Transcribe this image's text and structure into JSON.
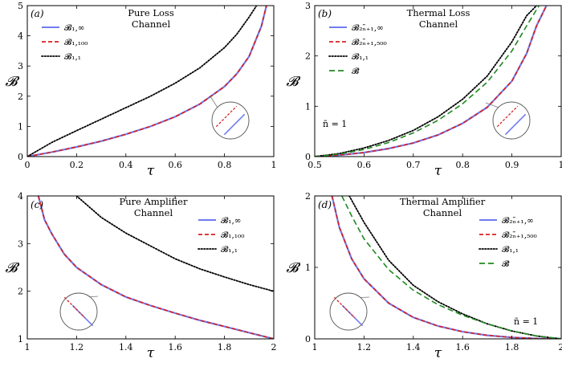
{
  "chart_data": [
    {
      "type": "line",
      "panel": "(a)",
      "title_lines": [
        "Pure Loss",
        "Channel"
      ],
      "xlabel": "τ",
      "ylabel": "𝓑",
      "xlim": [
        0,
        1
      ],
      "ylim": [
        0,
        5
      ],
      "xticks": [
        0,
        0.2,
        0.4,
        0.6,
        0.8,
        1
      ],
      "xtick_labels": [
        "0",
        "0.2",
        "0.4",
        "0.6",
        "0.8",
        "1"
      ],
      "yticks": [
        0,
        1,
        2,
        3,
        4,
        5
      ],
      "ytick_labels": [
        "0",
        "1",
        "2",
        "3",
        "4",
        "5"
      ],
      "legend_position": "top-left",
      "annotation": "",
      "series": [
        {
          "name": "𝓑₁,∞",
          "color": "#6f7cf0",
          "dash": "solid",
          "x": [
            0.0,
            0.1,
            0.2,
            0.3,
            0.4,
            0.5,
            0.6,
            0.7,
            0.8,
            0.85,
            0.9,
            0.95,
            0.97
          ],
          "y": [
            0.0,
            0.15,
            0.32,
            0.51,
            0.74,
            1.0,
            1.32,
            1.74,
            2.32,
            2.74,
            3.32,
            4.32,
            4.99
          ]
        },
        {
          "name": "𝓑₁,₁₀₀",
          "color": "#d62020",
          "dash": "dash",
          "x": [
            0.0,
            0.1,
            0.2,
            0.3,
            0.4,
            0.5,
            0.6,
            0.7,
            0.8,
            0.85,
            0.9,
            0.95,
            0.97
          ],
          "y": [
            0.0,
            0.15,
            0.32,
            0.51,
            0.74,
            1.0,
            1.32,
            1.74,
            2.32,
            2.74,
            3.32,
            4.32,
            4.99
          ]
        },
        {
          "name": "𝓑₁,₁",
          "color": "#000000",
          "dash": "dot",
          "x": [
            0.0,
            0.1,
            0.2,
            0.3,
            0.4,
            0.5,
            0.6,
            0.7,
            0.8,
            0.85,
            0.9,
            0.93
          ],
          "y": [
            0.0,
            0.47,
            0.86,
            1.24,
            1.62,
            2.0,
            2.43,
            2.94,
            3.61,
            4.05,
            4.62,
            5.0
          ]
        }
      ]
    },
    {
      "type": "line",
      "panel": "(b)",
      "title_lines": [
        "Thermal Loss",
        "Channel"
      ],
      "xlabel": "τ",
      "ylabel": "𝓑",
      "xlim": [
        0.5,
        1
      ],
      "ylim": [
        0,
        3
      ],
      "xticks": [
        0.5,
        0.6,
        0.7,
        0.8,
        0.9,
        1
      ],
      "xtick_labels": [
        "0.5",
        "0.6",
        "0.7",
        "0.8",
        "0.9",
        "1"
      ],
      "yticks": [
        0,
        1,
        2,
        3
      ],
      "ytick_labels": [
        "0",
        "1",
        "2",
        "3"
      ],
      "legend_position": "top-left",
      "annotation": "n̄ = 1",
      "series": [
        {
          "name": "𝓑₂ₙ̄₊₁,∞",
          "color": "#6f7cf0",
          "dash": "solid",
          "x": [
            0.5,
            0.55,
            0.6,
            0.65,
            0.7,
            0.75,
            0.8,
            0.85,
            0.9,
            0.93,
            0.95,
            0.97
          ],
          "y": [
            0.0,
            0.03,
            0.08,
            0.16,
            0.27,
            0.43,
            0.66,
            0.98,
            1.5,
            2.05,
            2.6,
            3.0
          ]
        },
        {
          "name": "𝓑₂ₙ̄₊₁,₅₀₀",
          "color": "#d62020",
          "dash": "dash",
          "x": [
            0.5,
            0.55,
            0.6,
            0.65,
            0.7,
            0.75,
            0.8,
            0.85,
            0.9,
            0.93,
            0.95,
            0.97
          ],
          "y": [
            0.0,
            0.03,
            0.08,
            0.16,
            0.27,
            0.43,
            0.66,
            0.98,
            1.5,
            2.05,
            2.6,
            3.0
          ]
        },
        {
          "name": "𝓑₁,₁",
          "color": "#000000",
          "dash": "dot",
          "x": [
            0.5,
            0.55,
            0.6,
            0.65,
            0.7,
            0.75,
            0.8,
            0.85,
            0.9,
            0.93,
            0.95
          ],
          "y": [
            0.0,
            0.06,
            0.17,
            0.32,
            0.52,
            0.79,
            1.14,
            1.6,
            2.28,
            2.8,
            3.0
          ]
        },
        {
          "name": "𝓑̃",
          "color": "#1f8a1f",
          "dash": "longdash",
          "x": [
            0.5,
            0.55,
            0.6,
            0.65,
            0.7,
            0.75,
            0.8,
            0.85,
            0.9,
            0.93,
            0.955
          ],
          "y": [
            0.0,
            0.05,
            0.14,
            0.28,
            0.47,
            0.72,
            1.05,
            1.48,
            2.1,
            2.6,
            3.0
          ]
        }
      ]
    },
    {
      "type": "line",
      "panel": "(c)",
      "title_lines": [
        "Pure Amplifier",
        "Channel"
      ],
      "xlabel": "τ",
      "ylabel": "𝓑",
      "xlim": [
        1,
        2
      ],
      "ylim": [
        1,
        4
      ],
      "xticks": [
        1,
        1.2,
        1.4,
        1.6,
        1.8,
        2
      ],
      "xtick_labels": [
        "1",
        "1.2",
        "1.4",
        "1.6",
        "1.8",
        "2"
      ],
      "yticks": [
        1,
        2,
        3,
        4
      ],
      "ytick_labels": [
        "1",
        "2",
        "3",
        "4"
      ],
      "legend_position": "top-right",
      "annotation": "",
      "series": [
        {
          "name": "𝓑₁,∞",
          "color": "#6f7cf0",
          "dash": "solid",
          "x": [
            1.045,
            1.07,
            1.1,
            1.15,
            1.2,
            1.3,
            1.4,
            1.5,
            1.6,
            1.7,
            1.8,
            1.9,
            2.0
          ],
          "y": [
            4.0,
            3.5,
            3.2,
            2.78,
            2.5,
            2.14,
            1.88,
            1.7,
            1.54,
            1.39,
            1.26,
            1.13,
            1.0
          ]
        },
        {
          "name": "𝓑₁,₁₀₀",
          "color": "#d62020",
          "dash": "dash",
          "x": [
            1.045,
            1.07,
            1.1,
            1.15,
            1.2,
            1.3,
            1.4,
            1.5,
            1.6,
            1.7,
            1.8,
            1.9,
            2.0
          ],
          "y": [
            4.0,
            3.5,
            3.2,
            2.78,
            2.5,
            2.14,
            1.88,
            1.7,
            1.54,
            1.39,
            1.26,
            1.13,
            1.0
          ]
        },
        {
          "name": "𝓑₁,₁",
          "color": "#000000",
          "dash": "dot",
          "x": [
            1.2,
            1.3,
            1.4,
            1.5,
            1.6,
            1.7,
            1.8,
            1.9,
            2.0
          ],
          "y": [
            4.0,
            3.55,
            3.22,
            2.95,
            2.68,
            2.47,
            2.3,
            2.14,
            2.0
          ]
        }
      ]
    },
    {
      "type": "line",
      "panel": "(d)",
      "title_lines": [
        "Thermal Amplifier",
        "Channel"
      ],
      "xlabel": "τ",
      "ylabel": "𝓑",
      "xlim": [
        1,
        2
      ],
      "ylim": [
        0,
        2
      ],
      "xticks": [
        1,
        1.2,
        1.4,
        1.6,
        1.8,
        2
      ],
      "xtick_labels": [
        "1",
        "1.2",
        "1.4",
        "1.6",
        "1.8",
        "2"
      ],
      "yticks": [
        0,
        1,
        2
      ],
      "ytick_labels": [
        "0",
        "1",
        "2"
      ],
      "legend_position": "top-right",
      "annotation": "n̄ = 1",
      "series": [
        {
          "name": "𝓑₂ₙ̄₊₁,∞",
          "color": "#6f7cf0",
          "dash": "solid",
          "x": [
            1.07,
            1.1,
            1.15,
            1.2,
            1.3,
            1.4,
            1.5,
            1.6,
            1.7,
            1.8,
            1.9,
            2.0
          ],
          "y": [
            2.0,
            1.56,
            1.12,
            0.84,
            0.5,
            0.3,
            0.18,
            0.1,
            0.05,
            0.02,
            0.005,
            0.0
          ]
        },
        {
          "name": "𝓑₂ₙ̄₊₁,₅₀₀",
          "color": "#d62020",
          "dash": "dash",
          "x": [
            1.07,
            1.1,
            1.15,
            1.2,
            1.3,
            1.4,
            1.5,
            1.6,
            1.7,
            1.8,
            1.9,
            2.0
          ],
          "y": [
            2.0,
            1.56,
            1.12,
            0.84,
            0.5,
            0.3,
            0.18,
            0.1,
            0.05,
            0.02,
            0.005,
            0.0
          ]
        },
        {
          "name": "𝓑₁,₁",
          "color": "#000000",
          "dash": "dot",
          "x": [
            1.14,
            1.2,
            1.3,
            1.4,
            1.5,
            1.6,
            1.7,
            1.8,
            1.9,
            2.0
          ],
          "y": [
            2.0,
            1.63,
            1.1,
            0.75,
            0.52,
            0.35,
            0.21,
            0.11,
            0.04,
            0.0
          ]
        },
        {
          "name": "𝓑̃",
          "color": "#1f8a1f",
          "dash": "longdash",
          "x": [
            1.11,
            1.15,
            1.2,
            1.3,
            1.4,
            1.5,
            1.6,
            1.7,
            1.8,
            1.9,
            2.0
          ],
          "y": [
            2.0,
            1.72,
            1.4,
            0.97,
            0.68,
            0.48,
            0.33,
            0.21,
            0.11,
            0.04,
            0.0
          ]
        }
      ]
    }
  ]
}
